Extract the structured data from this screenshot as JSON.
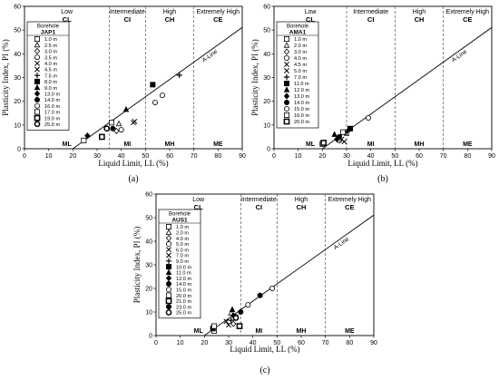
{
  "chart_data": [
    {
      "type": "scatter",
      "tag": "(a)",
      "xlabel": "Liquid Limit, LL (%)",
      "ylabel": "Plasticity Index, PI (%)",
      "xlim": [
        0,
        90
      ],
      "ylim": [
        0,
        60
      ],
      "xticks": [
        "0",
        "10",
        "20",
        "30",
        "40",
        "50",
        "60",
        "70",
        "80",
        "90"
      ],
      "yticks": [
        "0",
        "10",
        "20",
        "30",
        "40",
        "50",
        "60"
      ],
      "zones_top": [
        {
          "name": "Low",
          "code": "CL",
          "xmin": 0,
          "xmax": 35
        },
        {
          "name": "Intermediate",
          "code": "CI",
          "xmin": 35,
          "xmax": 50
        },
        {
          "name": "High",
          "code": "CH",
          "xmin": 50,
          "xmax": 70
        },
        {
          "name": "Extremely High",
          "code": "CE",
          "xmin": 70,
          "xmax": 90
        }
      ],
      "zones_bottom": [
        {
          "code": "ML",
          "xmin": 0,
          "xmax": 35
        },
        {
          "code": "MI",
          "xmin": 35,
          "xmax": 50
        },
        {
          "code": "MH",
          "xmin": 50,
          "xmax": 70
        },
        {
          "code": "ME",
          "xmin": 70,
          "xmax": 90
        }
      ],
      "zone_boundaries": [
        35,
        50,
        70
      ],
      "aline_label": "A-Line",
      "legend_title_1": "Borehole",
      "legend_title_2": "JAP1",
      "series": [
        {
          "name": "1.0 m",
          "marker": "square-open",
          "points": [
            [
              24.5,
              3.5
            ]
          ]
        },
        {
          "name": "2.5 m",
          "marker": "triangle-open",
          "points": [
            [
              39,
              10.5
            ]
          ]
        },
        {
          "name": "3.0 m",
          "marker": "diamond-open",
          "points": [
            [
              38,
              7.5
            ]
          ]
        },
        {
          "name": "3.5 m",
          "marker": "circle-open",
          "points": [
            [
              40,
              8
            ]
          ]
        },
        {
          "name": "4.0 m",
          "marker": "x",
          "points": [
            [
              45,
              11
            ]
          ]
        },
        {
          "name": "4.5 m",
          "marker": "x",
          "points": [
            [
              45.5,
              11.5
            ]
          ]
        },
        {
          "name": "7.5 m",
          "marker": "plus",
          "points": [
            [
              64,
              31
            ]
          ]
        },
        {
          "name": "8.0 m",
          "marker": "square-filled",
          "points": [
            [
              53,
              27
            ]
          ]
        },
        {
          "name": "9.0 m",
          "marker": "triangle-filled",
          "points": [
            [
              42,
              16.5
            ]
          ]
        },
        {
          "name": "13.0 m",
          "marker": "diamond-filled",
          "points": [
            [
              26,
              5.5
            ]
          ]
        },
        {
          "name": "14.0 m",
          "marker": "circle-filled",
          "points": [
            [
              36.5,
              8.5
            ]
          ]
        },
        {
          "name": "16.0 m",
          "marker": "circle-open",
          "points": [
            [
              57,
              22.5
            ],
            [
              54,
              19.5
            ]
          ]
        },
        {
          "name": "17.0 m",
          "marker": "square-open",
          "points": [
            [
              36,
              11
            ]
          ]
        },
        {
          "name": "19.0 m",
          "marker": "square-open-bold",
          "points": [
            [
              32,
              5
            ]
          ]
        },
        {
          "name": "25.0 m",
          "marker": "circle-open-bold",
          "points": [
            [
              34,
              8.5
            ]
          ]
        }
      ]
    },
    {
      "type": "scatter",
      "tag": "(b)",
      "xlabel": "Liquid Limit, LL (%)",
      "ylabel": "Plasticity Index, PI (%)",
      "xlim": [
        0,
        90
      ],
      "ylim": [
        0,
        60
      ],
      "xticks": [
        "0",
        "10",
        "20",
        "30",
        "40",
        "50",
        "60",
        "70",
        "80",
        "90"
      ],
      "yticks": [
        "0",
        "10",
        "20",
        "30",
        "40",
        "50",
        "60"
      ],
      "zones_top": [
        {
          "name": "Low",
          "code": "CL",
          "xmin": 0,
          "xmax": 30
        },
        {
          "name": "Intermediate",
          "code": "CI",
          "xmin": 30,
          "xmax": 50
        },
        {
          "name": "High",
          "code": "CH",
          "xmin": 50,
          "xmax": 70
        },
        {
          "name": "Extremely High",
          "code": "CE",
          "xmin": 70,
          "xmax": 90
        }
      ],
      "zones_bottom": [
        {
          "code": "ML",
          "xmin": 0,
          "xmax": 30
        },
        {
          "code": "MI",
          "xmin": 30,
          "xmax": 50
        },
        {
          "code": "MH",
          "xmin": 50,
          "xmax": 70
        },
        {
          "code": "ME",
          "xmin": 70,
          "xmax": 90
        }
      ],
      "zone_boundaries": [
        30,
        50,
        70
      ],
      "aline_label": "A-Line",
      "legend_title_1": "Borehole",
      "legend_title_2": "AMA1",
      "series": [
        {
          "name": "1.0 m",
          "marker": "square-open",
          "points": [
            [
              20,
              2
            ]
          ]
        },
        {
          "name": "2.0 m",
          "marker": "triangle-open",
          "points": [
            [
              30,
              6.5
            ]
          ]
        },
        {
          "name": "3.0 m",
          "marker": "diamond-open",
          "points": [
            [
              31,
              8
            ]
          ]
        },
        {
          "name": "4.0 m",
          "marker": "circle-open",
          "points": [
            [
              27,
              3.5
            ]
          ]
        },
        {
          "name": "4.5 m",
          "marker": "x",
          "points": [
            [
              28,
              4
            ]
          ]
        },
        {
          "name": "5.0 m",
          "marker": "x",
          "points": [
            [
              29,
              3
            ]
          ]
        },
        {
          "name": "7.0 m",
          "marker": "plus",
          "points": [
            [
              30,
              7
            ]
          ]
        },
        {
          "name": "11.0 m",
          "marker": "square-filled",
          "points": [
            [
              31.5,
              8.5
            ]
          ]
        },
        {
          "name": "12.0 m",
          "marker": "triangle-filled",
          "points": [
            [
              25,
              6
            ]
          ]
        },
        {
          "name": "13.0 m",
          "marker": "diamond-filled",
          "points": [
            [
              26,
              4
            ]
          ]
        },
        {
          "name": "14.0 m",
          "marker": "circle-filled",
          "points": [
            [
              27,
              5
            ]
          ]
        },
        {
          "name": "15.0 m",
          "marker": "circle-open",
          "points": [
            [
              39,
              13
            ]
          ]
        },
        {
          "name": "16.0 m",
          "marker": "square-open",
          "points": [
            [
              28.5,
              7
            ]
          ]
        },
        {
          "name": "20.0 m",
          "marker": "square-open-bold",
          "points": [
            [
              20.5,
              2.5
            ]
          ]
        }
      ]
    },
    {
      "type": "scatter",
      "tag": "(c)",
      "xlabel": "Liquid Limit, LL (%)",
      "ylabel": "Plasticity Index, PI (%)",
      "xlim": [
        0,
        90
      ],
      "ylim": [
        0,
        60
      ],
      "xticks": [
        "0",
        "10",
        "20",
        "30",
        "40",
        "50",
        "60",
        "70",
        "80",
        "90"
      ],
      "yticks": [
        "0",
        "10",
        "20",
        "30",
        "40",
        "50",
        "60"
      ],
      "zones_top": [
        {
          "name": "Low",
          "code": "CL",
          "xmin": 0,
          "xmax": 35
        },
        {
          "name": "Intermediate",
          "code": "CI",
          "xmin": 35,
          "xmax": 50
        },
        {
          "name": "High",
          "code": "CH",
          "xmin": 50,
          "xmax": 70
        },
        {
          "name": "Extremely High",
          "code": "CE",
          "xmin": 70,
          "xmax": 90
        }
      ],
      "zones_bottom": [
        {
          "code": "ML",
          "xmin": 0,
          "xmax": 35
        },
        {
          "code": "MI",
          "xmin": 35,
          "xmax": 50
        },
        {
          "code": "MH",
          "xmin": 50,
          "xmax": 70
        },
        {
          "code": "ME",
          "xmin": 70,
          "xmax": 90
        }
      ],
      "zone_boundaries": [
        35,
        50,
        70
      ],
      "aline_label": "A-Line",
      "legend_title_1": "Borehole",
      "legend_title_2": "AUS1",
      "series": [
        {
          "name": "1.0 m",
          "marker": "square-open",
          "points": [
            [
              24,
              2
            ]
          ]
        },
        {
          "name": "2.0 m",
          "marker": "triangle-open",
          "points": [
            [
              31,
              9.5
            ]
          ]
        },
        {
          "name": "4.0 m",
          "marker": "diamond-open",
          "points": [
            [
              32,
              5
            ]
          ]
        },
        {
          "name": "5.0 m",
          "marker": "circle-open",
          "points": [
            [
              33,
              8
            ]
          ]
        },
        {
          "name": "6.0 m",
          "marker": "x",
          "points": [
            [
              29,
              6
            ]
          ]
        },
        {
          "name": "7.0 m",
          "marker": "x",
          "points": [
            [
              30,
              4.5
            ]
          ]
        },
        {
          "name": "9.0 m",
          "marker": "plus",
          "points": [
            [
              31,
              6.5
            ]
          ]
        },
        {
          "name": "10.0 m",
          "marker": "square-filled",
          "points": [
            [
              23.5,
              3
            ]
          ]
        },
        {
          "name": "11.0 m",
          "marker": "triangle-filled",
          "points": [
            [
              31.5,
              11
            ]
          ]
        },
        {
          "name": "12.0 m",
          "marker": "diamond-filled",
          "points": [
            [
              32,
              8.5
            ]
          ]
        },
        {
          "name": "14.0 m",
          "marker": "circle-filled",
          "points": [
            [
              35,
              10
            ]
          ]
        },
        {
          "name": "15.0 m",
          "marker": "circle-open",
          "points": [
            [
              38,
              13
            ],
            [
              48,
              20
            ]
          ]
        },
        {
          "name": "20.0 m",
          "marker": "square-open",
          "points": [
            [
              24,
              4
            ]
          ]
        },
        {
          "name": "21.0 m",
          "marker": "square-open-bold",
          "points": [
            [
              34.5,
              4
            ]
          ]
        },
        {
          "name": "23.0 m",
          "marker": "circle-filled",
          "points": [
            [
              43,
              17
            ]
          ]
        },
        {
          "name": "25.0 m",
          "marker": "circle-open-bold",
          "points": [
            [
              33,
              7.5
            ]
          ]
        }
      ]
    }
  ]
}
